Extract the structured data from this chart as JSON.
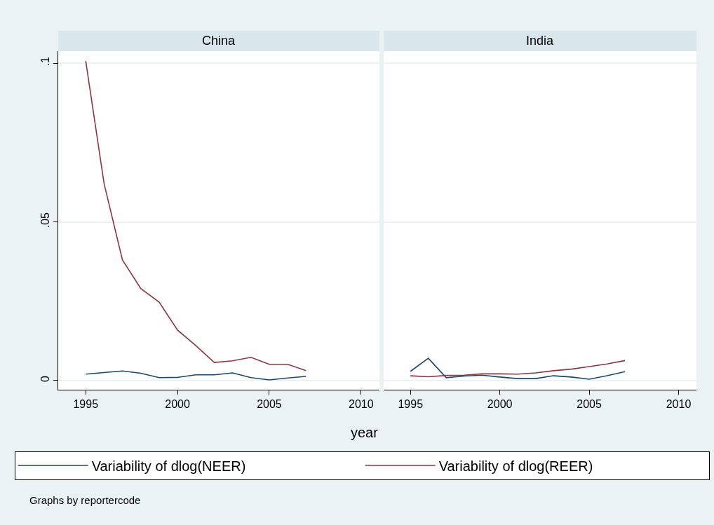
{
  "chart_data": [
    {
      "type": "line",
      "title": "China",
      "xlabel": "year",
      "x": [
        1995,
        1996,
        1997,
        1998,
        1999,
        2000,
        2001,
        2002,
        2003,
        2004,
        2005,
        2006,
        2007
      ],
      "series": [
        {
          "name": "Variability of dlog(NEER)",
          "color": "#1a476f",
          "values": [
            0.002,
            0.0025,
            0.003,
            0.0023,
            0.0009,
            0.001,
            0.0018,
            0.0018,
            0.0024,
            0.0009,
            0.0002,
            0.0008,
            0.0013
          ]
        },
        {
          "name": "Variability of dlog(REER)",
          "color": "#90353b",
          "values": [
            0.1007,
            0.062,
            0.038,
            0.029,
            0.0247,
            0.0159,
            0.011,
            0.0057,
            0.0062,
            0.0073,
            0.0051,
            0.0051,
            0.0031
          ]
        }
      ],
      "xlim": [
        1993.5,
        2011
      ],
      "xticks": [
        1995,
        2000,
        2005,
        2010
      ],
      "ylim": [
        -0.0029,
        0.1038
      ],
      "yticks": [
        0,
        {
          "value": 0.05,
          "label": ".05"
        },
        {
          "value": 0.1,
          "label": ".1"
        }
      ],
      "grid": "y",
      "legend": "bottom",
      "line_style": "solid",
      "marker": "none",
      "annotations": [
        "Graphs by reportercode"
      ]
    },
    {
      "type": "line",
      "title": "India",
      "x": [
        1995,
        1996,
        1997,
        1998,
        1999,
        2000,
        2001,
        2002,
        2003,
        2004,
        2005,
        2006,
        2007
      ],
      "series": [
        {
          "color": "#1a476f",
          "values": [
            0.0029,
            0.007,
            0.0009,
            0.0014,
            0.0017,
            0.0011,
            0.0006,
            0.0006,
            0.0015,
            0.0011,
            0.0004,
            0.0015,
            0.0028
          ]
        },
        {
          "color": "#90353b",
          "values": [
            0.0015,
            0.0012,
            0.0016,
            0.0017,
            0.0021,
            0.0021,
            0.002,
            0.0024,
            0.0031,
            0.0036,
            0.0044,
            0.0052,
            0.0063
          ]
        }
      ],
      "xlim": [
        1993.5,
        2011
      ],
      "xticks": [
        1995,
        2000,
        2005,
        2010
      ],
      "ylim": [
        -0.0029,
        0.1038
      ],
      "yticks": [
        0,
        0.05,
        0.1
      ],
      "grid": "y",
      "line_style": "solid",
      "marker": "none",
      "tick_labels": "x"
    }
  ]
}
